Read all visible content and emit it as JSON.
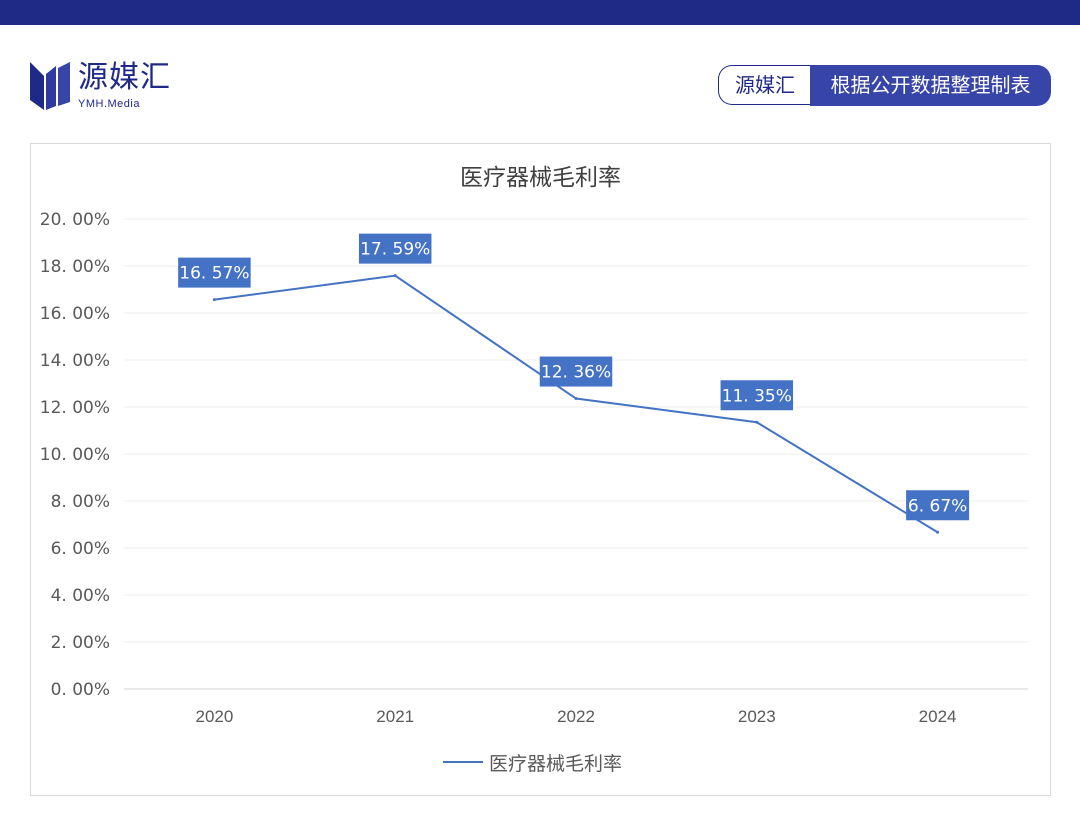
{
  "brand": {
    "name": "源媒汇",
    "sub": "YMH.Media"
  },
  "source_badge": {
    "brand": "源媒汇",
    "text": "根据公开数据整理制表"
  },
  "colors": {
    "top_bar": "#1f2a87",
    "series": "#4472c4",
    "label_box": "#4472c4"
  },
  "chart_data": {
    "type": "line",
    "title": "医疗器械毛利率",
    "categories": [
      "2020",
      "2021",
      "2022",
      "2023",
      "2024"
    ],
    "series": [
      {
        "name": "医疗器械毛利率",
        "values": [
          16.57,
          17.59,
          12.36,
          11.35,
          6.67
        ],
        "labels": [
          "16. 57%",
          "17. 59%",
          "12. 36%",
          "11. 35%",
          "6. 67%"
        ]
      }
    ],
    "ylim": [
      0,
      20
    ],
    "yticks": [
      0,
      2,
      4,
      6,
      8,
      10,
      12,
      14,
      16,
      18,
      20
    ],
    "ytick_labels": [
      "0. 00%",
      "2. 00%",
      "4. 00%",
      "6. 00%",
      "8. 00%",
      "10. 00%",
      "12. 00%",
      "14. 00%",
      "16. 00%",
      "18. 00%",
      "20. 00%"
    ],
    "grid": true,
    "legend": "bottom"
  }
}
